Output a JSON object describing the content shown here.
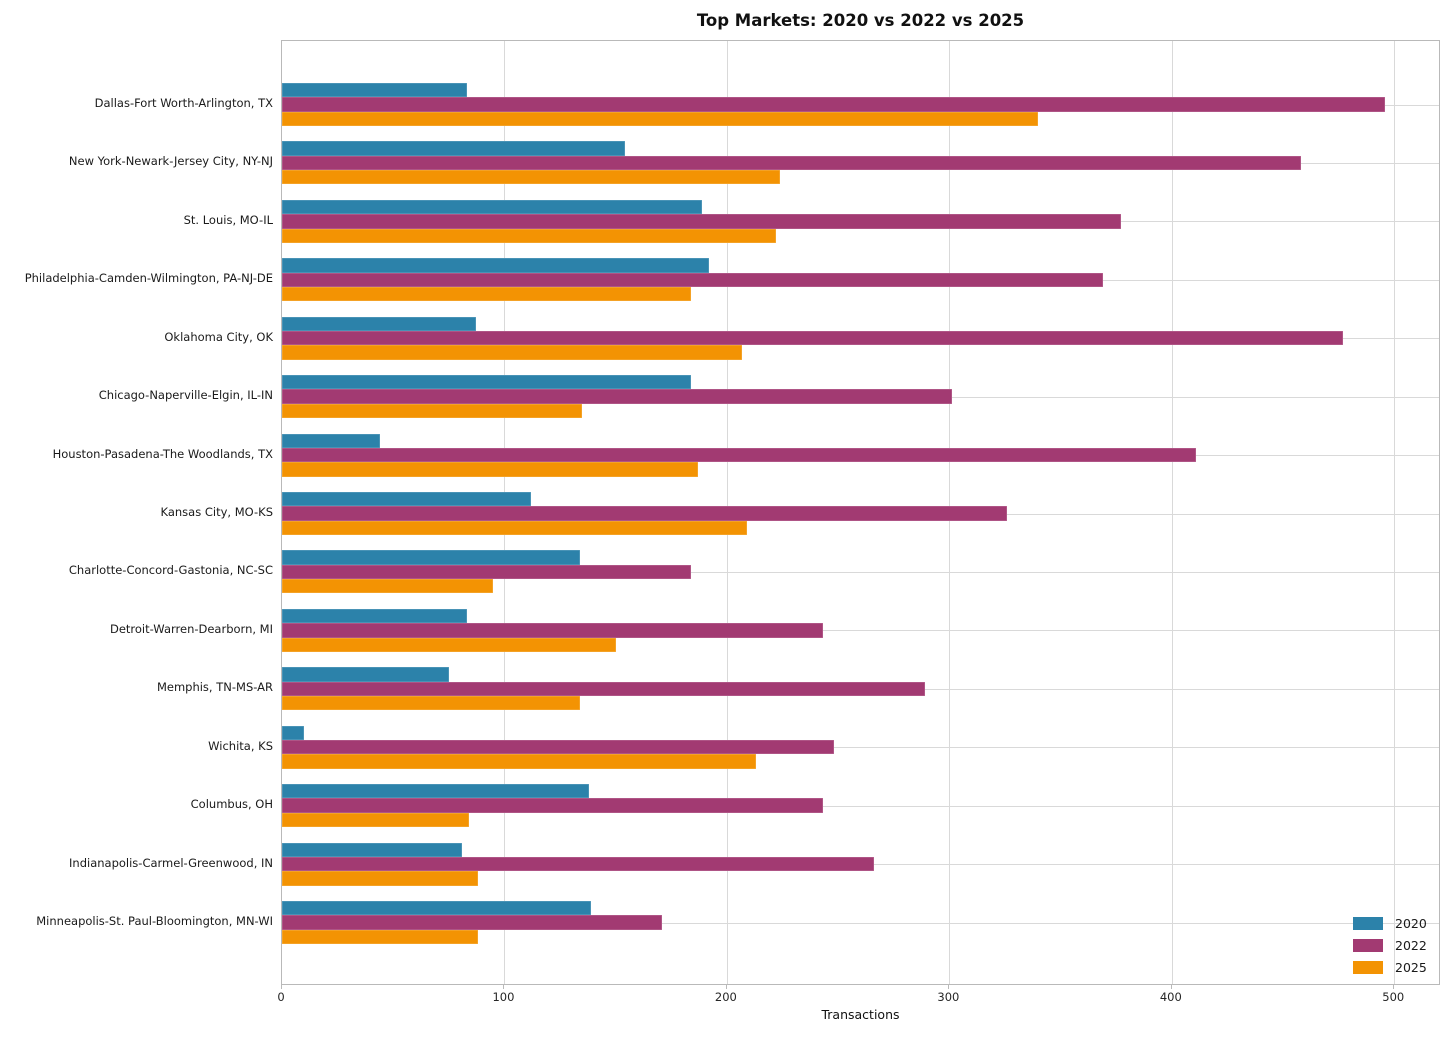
{
  "chart_data": {
    "type": "bar",
    "orientation": "horizontal",
    "title": "Top Markets: 2020 vs 2022 vs 2025",
    "xlabel": "Transactions",
    "categories": [
      "Dallas-Fort Worth-Arlington, TX",
      "New York-Newark-Jersey City, NY-NJ",
      "St. Louis, MO-IL",
      "Philadelphia-Camden-Wilmington, PA-NJ-DE",
      "Oklahoma City, OK",
      "Chicago-Naperville-Elgin, IL-IN",
      "Houston-Pasadena-The Woodlands, TX",
      "Kansas City, MO-KS",
      "Charlotte-Concord-Gastonia, NC-SC",
      "Detroit-Warren-Dearborn, MI",
      "Memphis, TN-MS-AR",
      "Wichita, KS",
      "Columbus, OH",
      "Indianapolis-Carmel-Greenwood, IN",
      "Minneapolis-St. Paul-Bloomington, MN-WI"
    ],
    "series": [
      {
        "name": "2020",
        "color": "#2c82aa",
        "values": [
          83,
          154,
          189,
          192,
          87,
          184,
          44,
          112,
          134,
          83,
          75,
          10,
          138,
          81,
          139
        ]
      },
      {
        "name": "2022",
        "color": "#a23a72",
        "values": [
          496,
          458,
          377,
          369,
          477,
          301,
          411,
          326,
          184,
          243,
          289,
          248,
          243,
          266,
          171
        ]
      },
      {
        "name": "2025",
        "color": "#f39303",
        "values": [
          340,
          224,
          222,
          184,
          207,
          135,
          187,
          209,
          95,
          150,
          134,
          213,
          84,
          88,
          88
        ]
      }
    ],
    "xticks": [
      0,
      100,
      200,
      300,
      400,
      500
    ],
    "xlim": [
      0,
      521
    ],
    "grid": true,
    "legend_position": "lower right",
    "colors": {
      "grid": "#d9d9d9",
      "axis_border": "#b9b9b9",
      "text": "#1a1a1a"
    }
  }
}
